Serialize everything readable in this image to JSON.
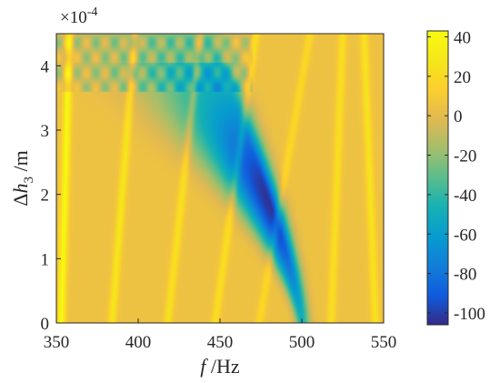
{
  "chart_data": {
    "type": "heatmap",
    "title": "",
    "xlabel": {
      "var": "f",
      "unit": " /Hz"
    },
    "ylabel": {
      "sym": "Δ",
      "var": "h",
      "sub": "3",
      "unit": " /m"
    },
    "x_range": [
      350,
      550
    ],
    "y_range": [
      0,
      0.00045
    ],
    "x_ticks": [
      350,
      400,
      450,
      500,
      550
    ],
    "x_tick_labels": [
      "350",
      "400",
      "450",
      "500",
      "550"
    ],
    "y_ticks": [
      0,
      1,
      2,
      3,
      4
    ],
    "y_tick_labels": [
      "0",
      "1",
      "2",
      "3",
      "4"
    ],
    "y_scale_exponent": {
      "base": "×10",
      "exp": "-4"
    },
    "colorbar": {
      "colormap": "parula",
      "range": [
        -106,
        43
      ],
      "ticks": [
        40,
        20,
        0,
        -20,
        -40,
        -60,
        -80,
        -100
      ],
      "tick_labels": [
        "40",
        "20",
        "0",
        "-20",
        "-40",
        "-60",
        "-80",
        "-100"
      ]
    },
    "background_level": 5,
    "resonance_ridges": [
      {
        "f_at_y0": 353,
        "f_at_ymax": 358,
        "peak": 40
      },
      {
        "f_at_y0": 384,
        "f_at_ymax": 398,
        "peak": 28
      },
      {
        "f_at_y0": 418,
        "f_at_ymax": 438,
        "peak": 25
      },
      {
        "f_at_y0": 447,
        "f_at_ymax": 472,
        "peak": 24
      },
      {
        "f_at_y0": 474,
        "f_at_ymax": 505,
        "peak": 20
      },
      {
        "f_at_y0": 518,
        "f_at_ymax": 525,
        "peak": 24
      },
      {
        "f_at_y0": 545,
        "f_at_ymax": 538,
        "peak": 26
      }
    ],
    "anti_resonance_valley": {
      "f_at_y0": 500,
      "f_at_ymax": 440,
      "min_value": -103,
      "min_location": [
        483,
        0.0002
      ]
    },
    "grid": false
  },
  "colors": {
    "text": "#262626",
    "axis": "#262626"
  }
}
